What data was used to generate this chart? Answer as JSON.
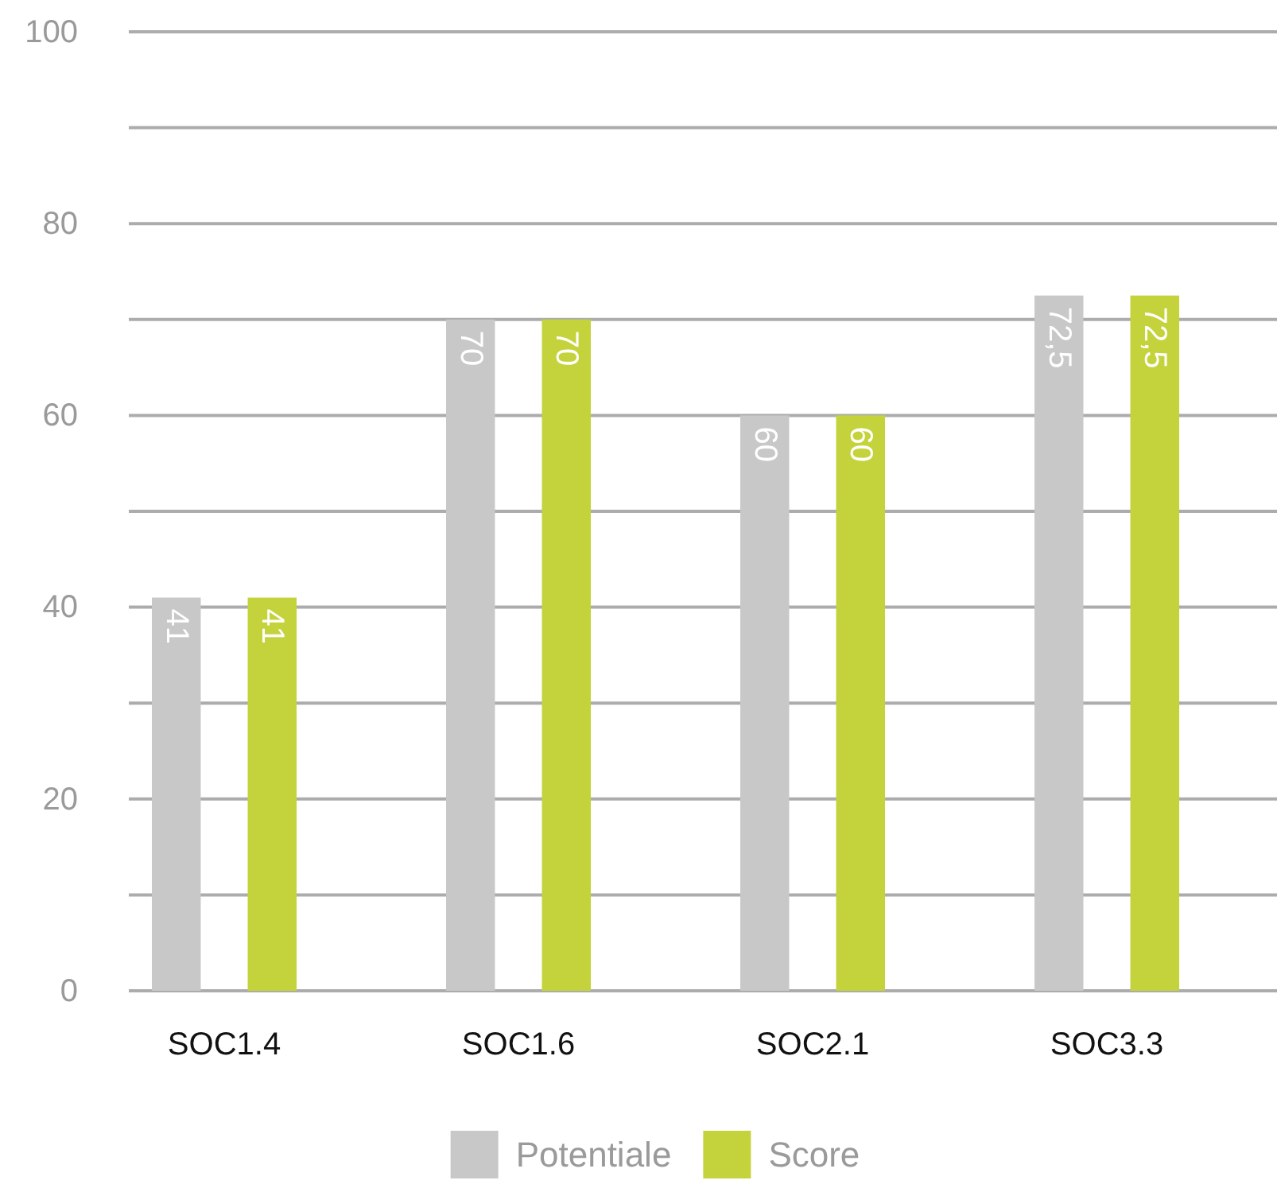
{
  "chart_data": {
    "type": "bar",
    "categories": [
      "SOC1.4",
      "SOC1.6",
      "SOC2.1",
      "SOC3.3"
    ],
    "series": [
      {
        "name": "Potentiale",
        "color": "#c8c8c8",
        "values": [
          41,
          70,
          60,
          72.5
        ],
        "value_labels": [
          "41",
          "70",
          "60",
          "72,5"
        ]
      },
      {
        "name": "Score",
        "color": "#c4d33b",
        "values": [
          41,
          70,
          60,
          72.5
        ],
        "value_labels": [
          "41",
          "70",
          "60",
          "72,5"
        ]
      }
    ],
    "ylim": [
      0,
      100
    ],
    "yticks": [
      0,
      {
        "value": 10,
        "label": null
      },
      20,
      {
        "value": 30,
        "label": null
      },
      40,
      {
        "value": 50,
        "label": null
      },
      60,
      {
        "value": 70,
        "label": null
      },
      80,
      {
        "value": 90,
        "label": null
      },
      100
    ],
    "grid": "y",
    "legend": "bottom"
  }
}
